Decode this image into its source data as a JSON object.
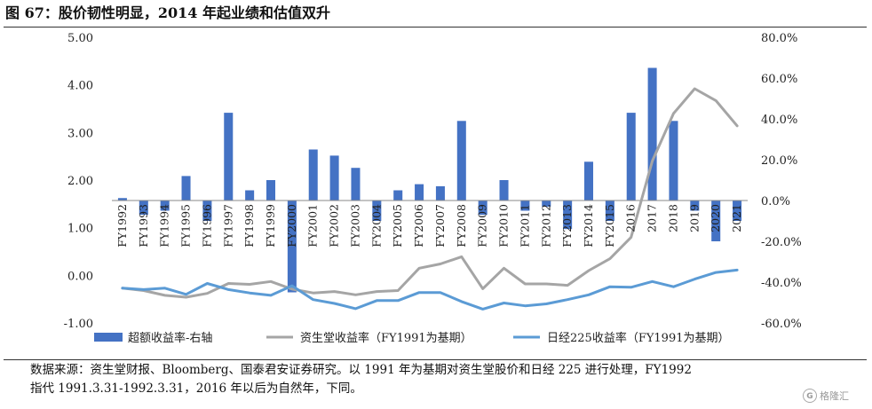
{
  "header": {
    "title": "图 67：股价韧性明显，2014 年起业绩和估值双升"
  },
  "footer": {
    "source_line1": "数据来源：资生堂财报、Bloomberg、国泰君安证券研究。以 1991 年为基期对资生堂股价和日经 225 进行处理，FY1992",
    "source_line2": "指代 1991.3.31-1992.3.31，2016 年以后为自然年，下同。",
    "watermark": "格隆汇"
  },
  "colors": {
    "bar": "#4472C4",
    "shiseido": "#A5A5A5",
    "nikkei": "#5B9BD5"
  },
  "chart_data": {
    "type": "bar",
    "categories": [
      "FY1992",
      "FY1993",
      "FY1994",
      "FY1995",
      "FY1996",
      "FY1997",
      "FY1998",
      "FY1999",
      "FY2000",
      "FY2001",
      "FY2002",
      "FY2003",
      "FY2004",
      "FY2005",
      "FY2006",
      "FY2007",
      "FY2008",
      "FY2009",
      "FY2010",
      "FY2011",
      "FY2012",
      "FY2013",
      "FY2014",
      "FY2015",
      "2016",
      "2017",
      "2018",
      "2019",
      "2020",
      "2021"
    ],
    "left_axis": {
      "ylim": [
        -1,
        5
      ],
      "ticks": [
        "-1.00",
        "0.00",
        "1.00",
        "2.00",
        "3.00",
        "4.00",
        "5.00"
      ]
    },
    "right_axis": {
      "ylim": [
        -60,
        80
      ],
      "ticks": [
        "-60.0%",
        "-40.0%",
        "-20.0%",
        "0.0%",
        "20.0%",
        "40.0%",
        "60.0%",
        "80.0%"
      ]
    },
    "grid": false,
    "legend_position": "bottom",
    "series": [
      {
        "name": "超额收益率-右轴",
        "kind": "bar",
        "axis": "right",
        "values": [
          1.2,
          -7,
          -5,
          12,
          -10,
          43,
          5,
          10,
          -45,
          25,
          22,
          16,
          -10,
          5,
          8,
          7,
          39,
          -7,
          10,
          -5,
          -3,
          -14,
          19,
          -10,
          43,
          65,
          39,
          -5,
          -20,
          -10
        ]
      },
      {
        "name": "资生堂收益率（FY1991为基期）",
        "kind": "line",
        "axis": "left",
        "values": [
          -0.27,
          -0.32,
          -0.42,
          -0.46,
          -0.38,
          -0.17,
          -0.19,
          -0.13,
          -0.29,
          -0.37,
          -0.34,
          -0.41,
          -0.34,
          -0.32,
          0.15,
          0.24,
          0.39,
          -0.28,
          0.15,
          -0.18,
          -0.18,
          -0.21,
          0.1,
          0.35,
          0.8,
          2.4,
          3.4,
          3.92,
          3.67,
          3.14
        ]
      },
      {
        "name": "日经225收益率（FY1991为基期）",
        "kind": "line",
        "axis": "left",
        "values": [
          -0.27,
          -0.3,
          -0.27,
          -0.4,
          -0.17,
          -0.3,
          -0.37,
          -0.42,
          -0.22,
          -0.51,
          -0.59,
          -0.7,
          -0.53,
          -0.53,
          -0.36,
          -0.36,
          -0.55,
          -0.71,
          -0.58,
          -0.64,
          -0.6,
          -0.51,
          -0.41,
          -0.24,
          -0.25,
          -0.13,
          -0.24,
          -0.08,
          0.06,
          0.11
        ]
      }
    ]
  }
}
